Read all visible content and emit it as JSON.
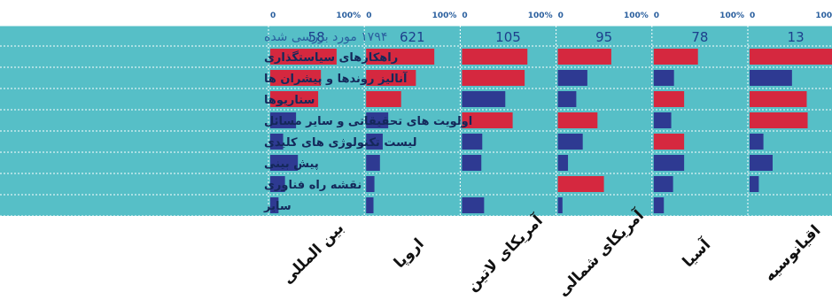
{
  "colors": {
    "background": "#56bfc7",
    "high_bar": "#d5283f",
    "low_bar": "#2e3a92",
    "grid": "#ffffff",
    "header_text": "#2a5f9e",
    "row_text": "#14285a"
  },
  "chart_data": {
    "type": "bar",
    "orientation": "horizontal",
    "header_label": "۱۷۹۴ مورد بررسی شده",
    "x_tick_labels": [
      "0",
      "100%"
    ],
    "xlim": [
      0,
      100
    ],
    "categories": [
      "راهکارهای سیاستگذاری",
      "آنالیز روندها و پیشران ها",
      "سناریوها",
      "اولویت های تحقیقاتی و سایر مسائل",
      "لیست تکنولوژی های کلیدی",
      "پیش بینی",
      "نقشه راه فناوری",
      "سایر"
    ],
    "legend_colors": {
      "red": "high frequency",
      "blue": "low frequency"
    },
    "panels": [
      {
        "name": "بین المللی",
        "count": "58",
        "values": [
          72,
          55,
          52,
          28,
          14,
          30,
          16,
          9
        ],
        "colors": [
          "red",
          "red",
          "red",
          "blue",
          "blue",
          "blue",
          "blue",
          "blue"
        ]
      },
      {
        "name": "اروپا",
        "count": "621",
        "values": [
          74,
          54,
          38,
          24,
          18,
          15,
          9,
          8
        ],
        "colors": [
          "red",
          "red",
          "red",
          "blue",
          "blue",
          "blue",
          "blue",
          "blue"
        ]
      },
      {
        "name": "آمریکای لاتین",
        "count": "105",
        "values": [
          71,
          68,
          47,
          55,
          22,
          21,
          0,
          24
        ],
        "colors": [
          "red",
          "red",
          "blue",
          "red",
          "blue",
          "blue",
          "blue",
          "blue"
        ]
      },
      {
        "name": "آمریکای شمالی",
        "count": "95",
        "values": [
          58,
          32,
          20,
          43,
          27,
          11,
          50,
          5
        ],
        "colors": [
          "red",
          "blue",
          "blue",
          "red",
          "blue",
          "blue",
          "red",
          "blue"
        ]
      },
      {
        "name": "آسیا",
        "count": "78",
        "values": [
          48,
          22,
          33,
          19,
          33,
          33,
          21,
          11
        ],
        "colors": [
          "red",
          "blue",
          "red",
          "blue",
          "red",
          "blue",
          "blue",
          "blue"
        ]
      },
      {
        "name": "اقیانوسیه",
        "count": "13",
        "values": [
          100,
          46,
          62,
          63,
          15,
          25,
          10,
          0
        ],
        "colors": [
          "red",
          "blue",
          "red",
          "red",
          "blue",
          "blue",
          "blue",
          "blue"
        ]
      }
    ]
  }
}
